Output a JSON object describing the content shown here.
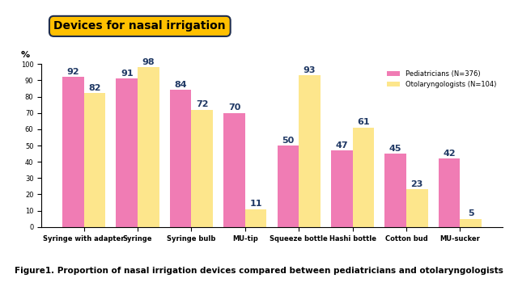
{
  "chart_data": {
    "type": "bar",
    "title": "Devices for nasal irrigation",
    "subtitle": "Figure1. Proportion of nasal irrigation devices compared between pediatricians and otolaryngologists",
    "y_label": "%",
    "categories": [
      "Syringe with adapter",
      "Syringe",
      "Syringe bulb",
      "MU-tip",
      "Squeeze bottle",
      "Hashi bottle",
      "Cotton bud",
      "MU-sucker"
    ],
    "series": [
      {
        "name": "Pediatricians (N=376)",
        "color": "#f07cb4",
        "values": [
          92,
          91,
          84,
          70,
          50,
          47,
          45,
          42
        ]
      },
      {
        "name": "Otolaryngologists (N=104)",
        "color": "#fde68c",
        "values": [
          82,
          98,
          72,
          11,
          93,
          61,
          23,
          5
        ]
      }
    ],
    "ylim": [
      0,
      100
    ],
    "yticks": [
      0,
      10,
      20,
      30,
      40,
      50,
      60,
      70,
      80,
      90,
      100
    ],
    "grid": false,
    "legend": "upper right",
    "data_labels": true
  }
}
